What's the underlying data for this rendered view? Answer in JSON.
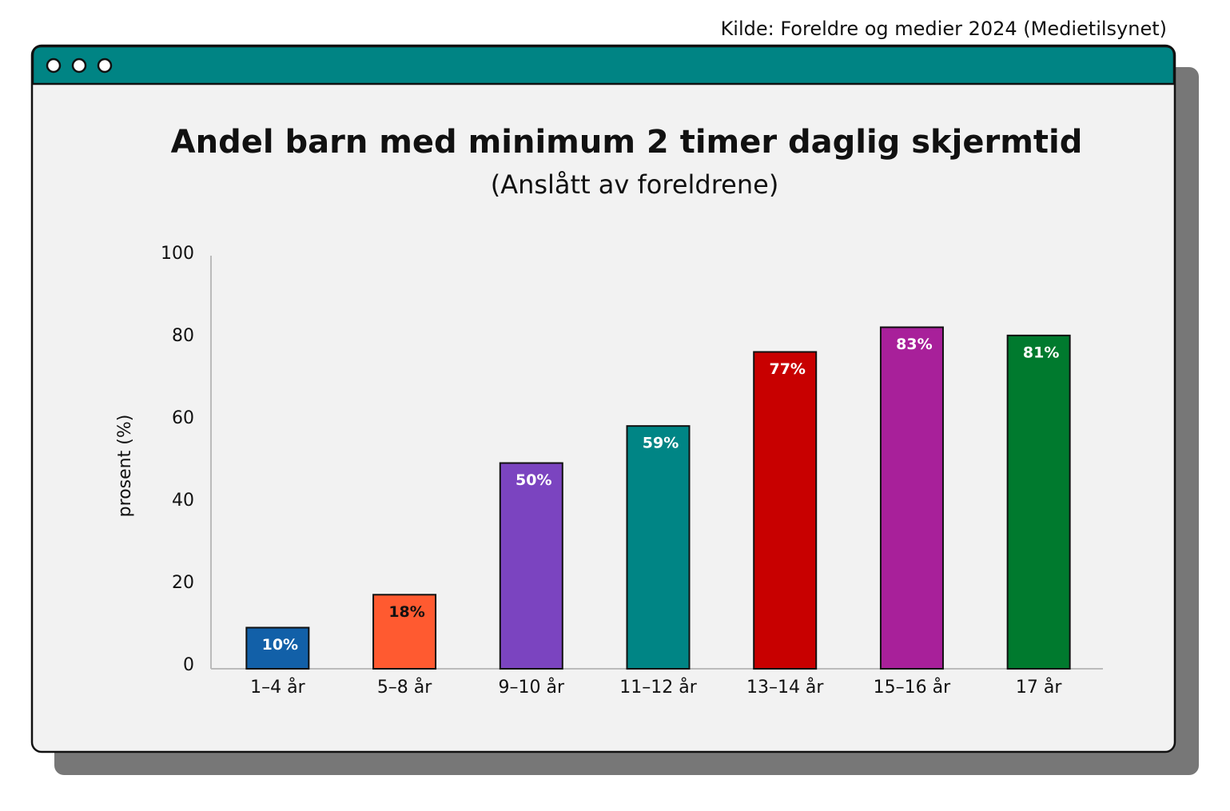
{
  "chart_data": {
    "type": "bar",
    "title": "Andel barn med minimum 2 timer daglig skjermtid",
    "subtitle": "(Anslått av foreldrene)",
    "source": "Kilde: Foreldre og medier 2024 (Medietilsynet)",
    "y_label": "prosent (%)",
    "categories": [
      "1–4 år",
      "5–8 år",
      "9–10 år",
      "11–12 år",
      "13–14 år",
      "15–16 år",
      "17 år"
    ],
    "values": [
      10,
      18,
      50,
      59,
      77,
      83,
      81
    ],
    "value_labels": [
      "10%",
      "18%",
      "50%",
      "59%",
      "77%",
      "83%",
      "81%"
    ],
    "colors": [
      "#1260a8",
      "#ff5a30",
      "#7b44c0",
      "#008585",
      "#c80000",
      "#a8209a",
      "#007a2e"
    ],
    "value_label_colors": [
      "#ffffff",
      "#111111",
      "#ffffff",
      "#ffffff",
      "#ffffff",
      "#ffffff",
      "#ffffff"
    ],
    "ylim": [
      0,
      100
    ],
    "yticks": [
      0,
      20,
      40,
      60,
      80,
      100
    ],
    "grid": false
  }
}
